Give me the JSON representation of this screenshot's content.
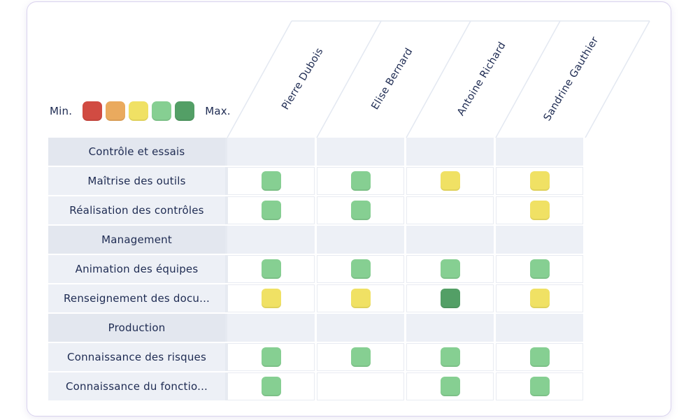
{
  "colors": {
    "text": "#1e2b52",
    "card_border": "#d9d2ee",
    "grid_line": "#e3e8f1",
    "row_tint": "#edf0f6",
    "row_tint_dark": "#e3e7ef",
    "level_palette": [
      "#d14b42",
      "#eaaa5e",
      "#f0e164",
      "#86cf92",
      "#539f66"
    ]
  },
  "legend": {
    "min_label": "Min.",
    "max_label": "Max."
  },
  "chart_data": {
    "type": "heatmap",
    "title": "",
    "x": [
      "Pierre Dubois",
      "Elise Bernard",
      "Antoine Richard",
      "Sandrine Gauthier"
    ],
    "rows": [
      {
        "type": "category",
        "label": "Contrôle et essais"
      },
      {
        "type": "skill",
        "label": "Maîtrise des outils",
        "values": [
          4,
          4,
          3,
          3
        ]
      },
      {
        "type": "skill",
        "label": "Réalisation des contrôles",
        "values": [
          4,
          4,
          0,
          3
        ]
      },
      {
        "type": "category",
        "label": "Management"
      },
      {
        "type": "skill",
        "label": "Animation des équipes",
        "values": [
          4,
          4,
          4,
          4
        ]
      },
      {
        "type": "skill",
        "label": "Renseignement des docu...",
        "values": [
          3,
          3,
          5,
          3
        ]
      },
      {
        "type": "category",
        "label": "Production"
      },
      {
        "type": "skill",
        "label": "Connaissance des risques",
        "values": [
          4,
          4,
          4,
          4
        ]
      },
      {
        "type": "skill",
        "label": "Connaissance du fonctio...",
        "values": [
          4,
          0,
          4,
          4
        ]
      }
    ],
    "value_scale": {
      "empty": 0,
      "min": 1,
      "max": 5
    },
    "legend_position": "top-left",
    "grid": true
  }
}
